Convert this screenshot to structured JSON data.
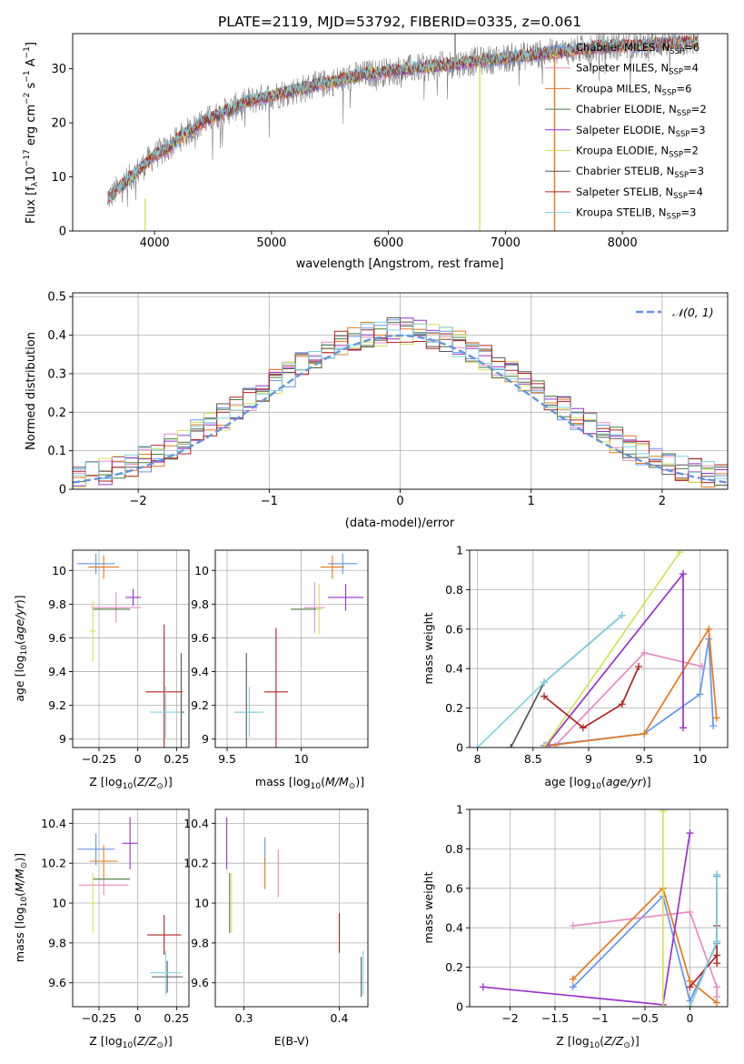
{
  "title": "PLATE=2119, MJD=53792, FIBERID=0335, z=0.061",
  "colors": {
    "series": [
      "#6495ed",
      "#e78ac3",
      "#e6781e",
      "#4a7a3a",
      "#9932cc",
      "#d4e157",
      "#555555",
      "#b22222",
      "#7fd3e0"
    ],
    "grid": "#b0b0b0",
    "dashed_normal": "#6495d8"
  },
  "chart_data": [
    {
      "id": "spectrum",
      "type": "line",
      "title": "PLATE=2119, MJD=53792, FIBERID=0335, z=0.061",
      "xlabel": "wavelength [Angstrom, rest frame]",
      "ylabel": "Flux [f_λ10^-17 erg cm^-2 s^-1 A^-1]",
      "xlim": [
        3300,
        8900
      ],
      "ylim": [
        0,
        36.5
      ],
      "xticks": [
        4000,
        5000,
        6000,
        7000,
        8000
      ],
      "yticks": [
        0,
        10,
        20,
        30
      ],
      "continuum": {
        "x": [
          3600,
          3700,
          3800,
          3900,
          4000,
          4100,
          4200,
          4400,
          4600,
          4800,
          5000,
          5200,
          5400,
          5600,
          5800,
          6000,
          6200,
          6400,
          6600,
          6800,
          7000,
          7200,
          7400,
          7600,
          7800,
          8000,
          8200,
          8400,
          8600
        ],
        "y": [
          6,
          8,
          10,
          12,
          14,
          15,
          17,
          20,
          22,
          24,
          25,
          26,
          27,
          28,
          29,
          29.5,
          30,
          30.5,
          31,
          31.5,
          32,
          32.5,
          33,
          33.5,
          34,
          34.2,
          34.5,
          34.8,
          35
        ]
      },
      "model_range": [
        3600,
        8650
      ],
      "legend": [
        "Chabrier MILES, N_SSP=6",
        "Salpeter MILES, N_SSP=4",
        "Kroupa MILES, N_SSP=6",
        "Chabrier ELODIE, N_SSP=2",
        "Salpeter ELODIE, N_SSP=3",
        "Kroupa ELODIE, N_SSP=2",
        "Chabrier STELIB, N_SSP=3",
        "Salpeter STELIB, N_SSP=4",
        "Kroupa STELIB, N_SSP=3"
      ],
      "legend_placement": "right"
    },
    {
      "id": "residuals",
      "type": "step-histogram",
      "xlabel": "(data-model)/error",
      "ylabel": "Normed distribution",
      "xlim": [
        -2.5,
        2.5
      ],
      "ylim": [
        0,
        0.51
      ],
      "xticks": [
        -2,
        -1,
        0,
        1,
        2
      ],
      "yticks": [
        0.0,
        0.1,
        0.2,
        0.3,
        0.4,
        0.5
      ],
      "bin_width": 0.1,
      "normal_label": "𝒩(0, 1)",
      "legend_placement": "top-right",
      "grid": true
    },
    {
      "id": "age_vs_Z",
      "type": "errorbar",
      "xlabel": "Z [log10(Z/Z⊙)]",
      "ylabel": "age  [log10(age/yr)]",
      "xlim": [
        -0.42,
        0.33
      ],
      "ylim": [
        8.95,
        10.12
      ],
      "xticks": [
        -0.25,
        0.0,
        0.25
      ],
      "yticks": [
        9.0,
        9.2,
        9.4,
        9.6,
        9.8,
        10.0
      ],
      "points": [
        {
          "s": 0,
          "x": -0.27,
          "y": 10.04,
          "ex": 0.12,
          "ey": 0.06
        },
        {
          "s": 1,
          "x": -0.14,
          "y": 9.78,
          "ex": 0.16,
          "ey": 0.09
        },
        {
          "s": 2,
          "x": -0.22,
          "y": 10.02,
          "ex": 0.1,
          "ey": 0.07
        },
        {
          "s": 3,
          "x": -0.17,
          "y": 9.77,
          "ex": 0.12,
          "ey": 0.0
        },
        {
          "s": 4,
          "x": -0.03,
          "y": 9.84,
          "ex": 0.05,
          "ey": 0.05
        },
        {
          "s": 5,
          "x": -0.29,
          "y": 9.64,
          "ex": 0.02,
          "ey": 0.18
        },
        {
          "s": 6,
          "x": 0.28,
          "y": 9.16,
          "ex": 0.02,
          "ey": 0.35
        },
        {
          "s": 7,
          "x": 0.17,
          "y": 9.28,
          "ex": 0.12,
          "ey": 0.4
        },
        {
          "s": 8,
          "x": 0.18,
          "y": 9.16,
          "ex": 0.1,
          "ey": 0.15
        }
      ]
    },
    {
      "id": "age_vs_mass",
      "type": "errorbar",
      "xlabel": "mass [log10(M/M⊙)]",
      "ylabel": "",
      "xlim": [
        9.42,
        10.45
      ],
      "ylim": [
        8.95,
        10.12
      ],
      "xticks": [
        9.5,
        10.0
      ],
      "yticks": [
        9.0,
        9.2,
        9.4,
        9.6,
        9.8,
        10.0
      ],
      "points": [
        {
          "s": 0,
          "x": 10.28,
          "y": 10.04,
          "ex": 0.1,
          "ey": 0.06
        },
        {
          "s": 1,
          "x": 10.09,
          "y": 9.78,
          "ex": 0.07,
          "ey": 0.15
        },
        {
          "s": 2,
          "x": 10.21,
          "y": 10.02,
          "ex": 0.08,
          "ey": 0.07
        },
        {
          "s": 3,
          "x": 10.03,
          "y": 9.77,
          "ex": 0.1,
          "ey": 0.0
        },
        {
          "s": 4,
          "x": 10.3,
          "y": 9.84,
          "ex": 0.12,
          "ey": 0.08
        },
        {
          "s": 5,
          "x": 10.12,
          "y": 9.77,
          "ex": 0.02,
          "ey": 0.15
        },
        {
          "s": 6,
          "x": 9.63,
          "y": 9.16,
          "ex": 0.08,
          "ey": 0.35
        },
        {
          "s": 7,
          "x": 9.83,
          "y": 9.28,
          "ex": 0.08,
          "ey": 0.38
        },
        {
          "s": 8,
          "x": 9.65,
          "y": 9.16,
          "ex": 0.1,
          "ey": 0.15
        }
      ]
    },
    {
      "id": "weight_vs_age",
      "type": "line",
      "xlabel": "age  [log10(age/yr)]",
      "ylabel": "mass weight",
      "xlim": [
        7.93,
        10.25
      ],
      "ylim": [
        0,
        1.0
      ],
      "xticks": [
        8.0,
        8.5,
        9.0,
        9.5,
        10.0
      ],
      "yticks": [
        0.0,
        0.2,
        0.4,
        0.6,
        0.8,
        1.0
      ],
      "series": [
        {
          "s": 0,
          "x": [
            8.6,
            9.5,
            10.0,
            10.08,
            10.12
          ],
          "y": [
            0.01,
            0.07,
            0.27,
            0.55,
            0.11
          ]
        },
        {
          "s": 1,
          "x": [
            8.7,
            9.5,
            10.02
          ],
          "y": [
            0.01,
            0.48,
            0.41
          ]
        },
        {
          "s": 2,
          "x": [
            8.65,
            9.5,
            10.08,
            10.15
          ],
          "y": [
            0.01,
            0.07,
            0.6,
            0.15
          ]
        },
        {
          "s": 4,
          "x": [
            8.62,
            9.85,
            9.85
          ],
          "y": [
            0.01,
            0.88,
            0.1
          ]
        },
        {
          "s": 5,
          "x": [
            8.6,
            9.82
          ],
          "y": [
            0.0,
            0.99
          ]
        },
        {
          "s": 6,
          "x": [
            8.3,
            8.6,
            9.3
          ],
          "y": [
            0.0,
            0.33,
            0.67
          ]
        },
        {
          "s": 7,
          "x": [
            8.6,
            8.95,
            9.3,
            9.45
          ],
          "y": [
            0.26,
            0.1,
            0.22,
            0.41
          ]
        },
        {
          "s": 8,
          "x": [
            8.0,
            8.6,
            9.3
          ],
          "y": [
            0.0,
            0.33,
            0.67
          ]
        }
      ]
    },
    {
      "id": "mass_vs_Z",
      "type": "errorbar",
      "xlabel": "Z [log10(Z/Z⊙)]",
      "ylabel": "mass [log10(M/M⊙)]",
      "xlim": [
        -0.42,
        0.33
      ],
      "ylim": [
        9.48,
        10.47
      ],
      "xticks": [
        -0.25,
        0.0,
        0.25
      ],
      "yticks": [
        9.6,
        9.8,
        10.0,
        10.2,
        10.4
      ],
      "points": [
        {
          "s": 0,
          "x": -0.27,
          "y": 10.27,
          "ex": 0.12,
          "ey": 0.08
        },
        {
          "s": 1,
          "x": -0.22,
          "y": 10.09,
          "ex": 0.16,
          "ey": 0.05
        },
        {
          "s": 2,
          "x": -0.22,
          "y": 10.21,
          "ex": 0.09,
          "ey": 0.08
        },
        {
          "s": 3,
          "x": -0.17,
          "y": 10.12,
          "ex": 0.12,
          "ey": 0.0
        },
        {
          "s": 4,
          "x": -0.05,
          "y": 10.3,
          "ex": 0.05,
          "ey": 0.13
        },
        {
          "s": 5,
          "x": -0.29,
          "y": 10.0,
          "ex": 0.02,
          "ey": 0.15
        },
        {
          "s": 6,
          "x": 0.19,
          "y": 9.63,
          "ex": 0.1,
          "ey": 0.08
        },
        {
          "s": 7,
          "x": 0.17,
          "y": 9.84,
          "ex": 0.11,
          "ey": 0.1
        },
        {
          "s": 8,
          "x": 0.18,
          "y": 9.65,
          "ex": 0.1,
          "ey": 0.11
        }
      ]
    },
    {
      "id": "mass_vs_ebv",
      "type": "errorbar",
      "xlabel": "E(B-V)",
      "ylabel": "",
      "xlim": [
        0.27,
        0.43
      ],
      "ylim": [
        9.48,
        10.47
      ],
      "xticks": [
        0.3,
        0.4
      ],
      "yticks": [
        9.6,
        9.8,
        10.0,
        10.2,
        10.4
      ],
      "points": [
        {
          "s": 0,
          "x": 0.322,
          "y": 10.27,
          "ex": 0,
          "ey": 0.06
        },
        {
          "s": 1,
          "x": 0.336,
          "y": 10.15,
          "ex": 0,
          "ey": 0.12
        },
        {
          "s": 2,
          "x": 0.322,
          "y": 10.15,
          "ex": 0,
          "ey": 0.08
        },
        {
          "s": 3,
          "x": 0.285,
          "y": 10.0,
          "ex": 0,
          "ey": 0.15
        },
        {
          "s": 4,
          "x": 0.282,
          "y": 10.3,
          "ex": 0,
          "ey": 0.13
        },
        {
          "s": 5,
          "x": 0.287,
          "y": 10.0,
          "ex": 0,
          "ey": 0.15
        },
        {
          "s": 6,
          "x": 0.423,
          "y": 9.63,
          "ex": 0,
          "ey": 0.1
        },
        {
          "s": 7,
          "x": 0.4,
          "y": 9.85,
          "ex": 0,
          "ey": 0.1
        },
        {
          "s": 8,
          "x": 0.425,
          "y": 9.65,
          "ex": 0,
          "ey": 0.11
        }
      ]
    },
    {
      "id": "weight_vs_Z",
      "type": "line",
      "xlabel": "Z [log10(Z/Z⊙)]",
      "ylabel": "mass weight",
      "xlim": [
        -2.45,
        0.42
      ],
      "ylim": [
        0,
        1.0
      ],
      "xticks": [
        -2.0,
        -1.5,
        -1.0,
        -0.5,
        0.0
      ],
      "yticks": [
        0.0,
        0.2,
        0.4,
        0.6,
        0.8,
        1.0
      ],
      "series": [
        {
          "s": 0,
          "x": [
            -1.3,
            -0.3,
            0.0,
            0.3,
            0.3
          ],
          "y": [
            0.1,
            0.56,
            0.03,
            0.32,
            0.66
          ]
        },
        {
          "s": 1,
          "x": [
            -1.3,
            0.0,
            0.3,
            0.3
          ],
          "y": [
            0.41,
            0.48,
            0.1,
            0.05
          ]
        },
        {
          "s": 2,
          "x": [
            -1.3,
            -0.3,
            0.0,
            0.3
          ],
          "y": [
            0.14,
            0.6,
            0.13,
            0.02
          ]
        },
        {
          "s": 4,
          "x": [
            -2.3,
            -0.3,
            0.0
          ],
          "y": [
            0.1,
            0.01,
            0.88
          ]
        },
        {
          "s": 5,
          "x": [
            -0.3,
            -0.3
          ],
          "y": [
            0.0,
            0.99
          ]
        },
        {
          "s": 6,
          "x": [
            0.0,
            0.3,
            0.3
          ],
          "y": [
            0.0,
            0.33,
            0.67
          ]
        },
        {
          "s": 7,
          "x": [
            0.0,
            0.3,
            0.3,
            0.3
          ],
          "y": [
            0.1,
            0.26,
            0.22,
            0.41
          ]
        },
        {
          "s": 8,
          "x": [
            0.0,
            0.3,
            0.3
          ],
          "y": [
            0.0,
            0.33,
            0.67
          ]
        }
      ]
    }
  ]
}
